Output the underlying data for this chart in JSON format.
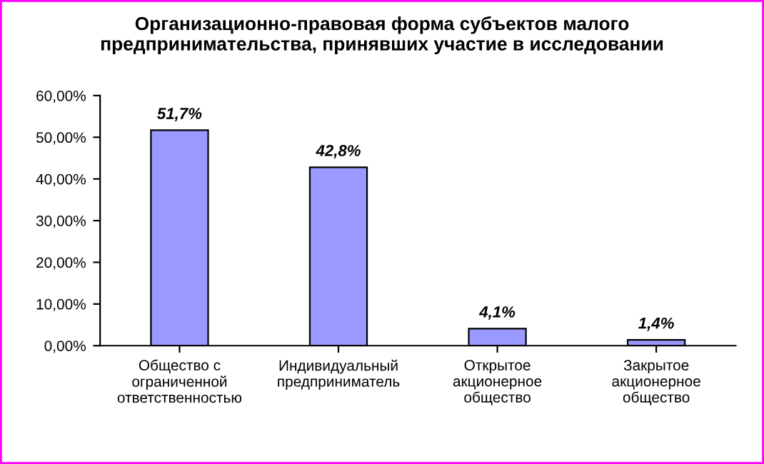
{
  "chart_data": {
    "type": "bar",
    "title": "Организационно-правовая форма субъектов малого\nпредпринимательства, принявших участие в исследовании",
    "categories": [
      "Общество с\nограниченной\nответственностью",
      "Индивидуальный\nпредприниматель",
      "Открытое\nакционерное\nобщество",
      "Закрытое\nакционерное\nобщество"
    ],
    "values": [
      51.7,
      42.8,
      4.1,
      1.4
    ],
    "value_labels": [
      "51,7%",
      "42,8%",
      "4,1%",
      "1,4%"
    ],
    "color": "#9999ff",
    "ylim": [
      0,
      60
    ],
    "yticks": [
      {
        "value": 0,
        "label": "0,00%"
      },
      {
        "value": 10,
        "label": "10,00%"
      },
      {
        "value": 20,
        "label": "20,00%"
      },
      {
        "value": 30,
        "label": "30,00%"
      },
      {
        "value": 40,
        "label": "40,00%"
      },
      {
        "value": 50,
        "label": "50,00%"
      },
      {
        "value": 60,
        "label": "60,00%"
      }
    ],
    "grid": false,
    "legend": false
  }
}
